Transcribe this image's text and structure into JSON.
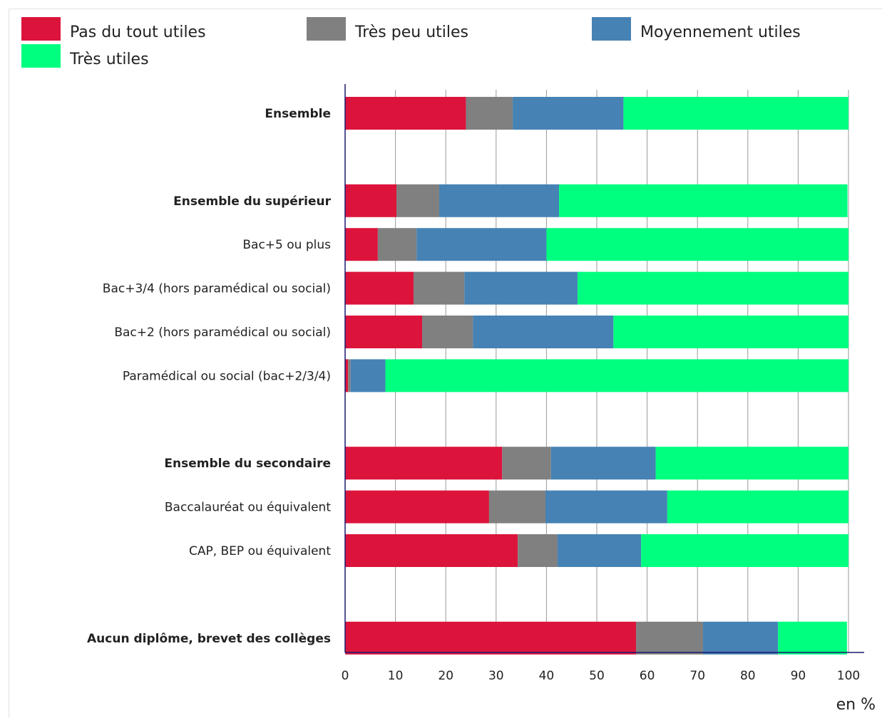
{
  "chart_data": {
    "type": "bar",
    "orientation": "horizontal",
    "stacked": true,
    "title": "",
    "xlabel": "en %",
    "ylabel": "",
    "xlim": [
      0,
      100
    ],
    "xticks": [
      0,
      10,
      20,
      30,
      40,
      50,
      60,
      70,
      80,
      90,
      100
    ],
    "grid": true,
    "legend_position": "top",
    "categories": [
      {
        "label": "Ensemble",
        "bold": true,
        "slot": 0
      },
      {
        "label": "Ensemble du supérieur",
        "bold": true,
        "slot": 2
      },
      {
        "label": "Bac+5 ou plus",
        "bold": false,
        "slot": 3
      },
      {
        "label": "Bac+3/4 (hors paramédical ou social)",
        "bold": false,
        "slot": 4
      },
      {
        "label": "Bac+2 (hors paramédical ou social)",
        "bold": false,
        "slot": 5
      },
      {
        "label": "Paramédical ou social (bac+2/3/4)",
        "bold": false,
        "slot": 6
      },
      {
        "label": "Ensemble du secondaire",
        "bold": true,
        "slot": 8
      },
      {
        "label": "Baccalauréat ou équivalent",
        "bold": false,
        "slot": 9
      },
      {
        "label": "CAP, BEP ou équivalent",
        "bold": false,
        "slot": 10
      },
      {
        "label": "Aucun diplôme, brevet des collèges",
        "bold": true,
        "slot": 12
      }
    ],
    "series": [
      {
        "name": "Pas du tout utiles",
        "color": "#DC143C",
        "values": [
          24,
          10.2,
          6.5,
          13.6,
          15.3,
          0.6,
          31.2,
          28.6,
          34.3,
          57.8
        ]
      },
      {
        "name": "Très peu utiles",
        "color": "#808080",
        "values": [
          9.3,
          8.5,
          7.7,
          10.1,
          10.1,
          0.5,
          9.7,
          11.2,
          7.9,
          13.3
        ]
      },
      {
        "name": "Moyennement utiles",
        "color": "#4682B4",
        "values": [
          22,
          23.8,
          25.8,
          22.5,
          27.9,
          6.9,
          20.8,
          24.2,
          16.6,
          14.9
        ]
      },
      {
        "name": "Très utiles",
        "color": "#00FF7F",
        "values": [
          44.7,
          57.3,
          60,
          53.8,
          46.7,
          92,
          38.3,
          36,
          41.2,
          13.7
        ]
      }
    ]
  }
}
